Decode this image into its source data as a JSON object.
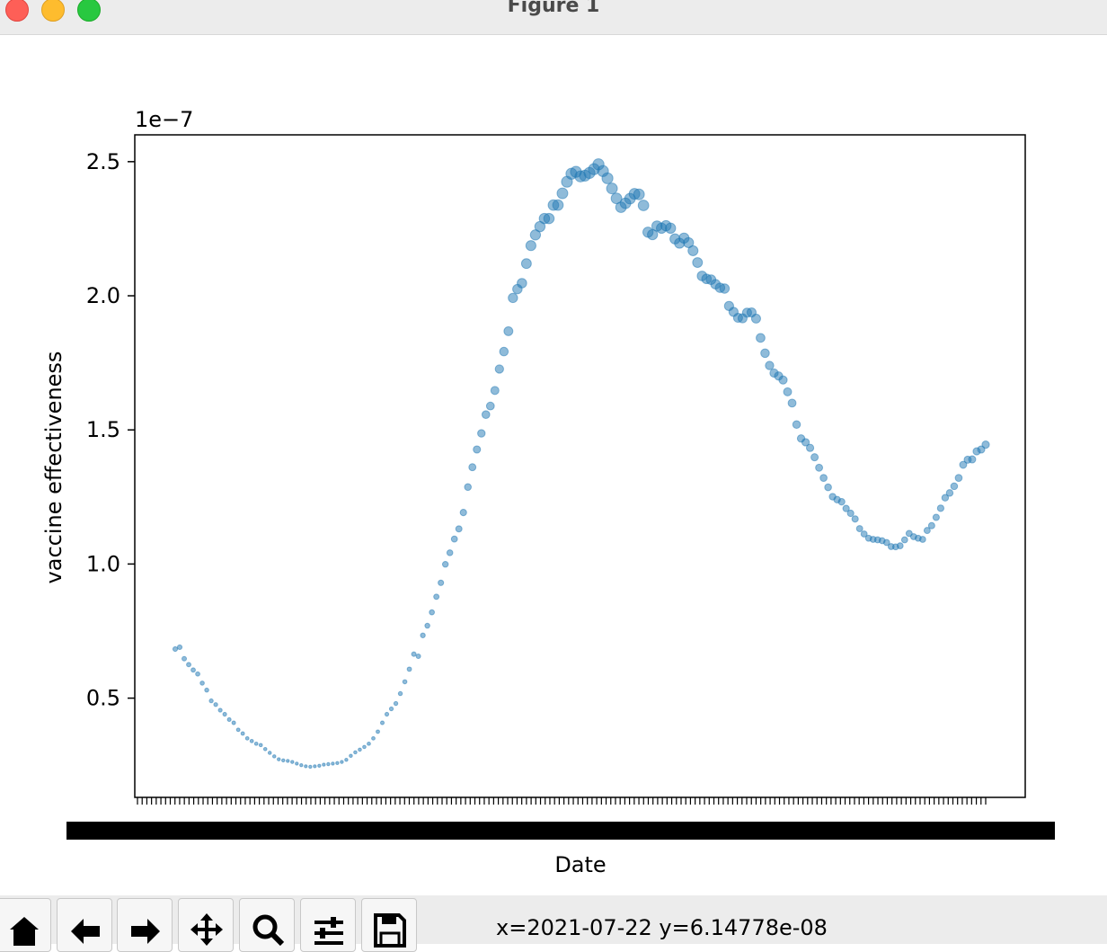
{
  "window": {
    "title": "Figure 1"
  },
  "toolbar": {
    "buttons": [
      {
        "name": "home-button",
        "icon": "home-icon"
      },
      {
        "name": "back-button",
        "icon": "arrow-left-icon"
      },
      {
        "name": "forward-button",
        "icon": "arrow-right-icon"
      },
      {
        "name": "pan-button",
        "icon": "move-icon"
      },
      {
        "name": "zoom-button",
        "icon": "magnifier-icon"
      },
      {
        "name": "configure-subplots-button",
        "icon": "sliders-icon"
      },
      {
        "name": "save-button",
        "icon": "floppy-icon"
      }
    ],
    "coords": "x=2021-07-22 y=6.14778e-08"
  },
  "chart_data": {
    "type": "scatter",
    "title": "",
    "xlabel": "Date",
    "ylabel": "vaccine effectiveness",
    "offset_text": "1e−7",
    "ylim": [
      0.13,
      2.6
    ],
    "yticks": [
      0.5,
      1.0,
      1.5,
      2.0,
      2.5
    ],
    "ytick_labels": [
      "0.5",
      "1.0",
      "1.5",
      "2.0",
      "2.5"
    ],
    "xtick_count": 182,
    "xtick_labels_note": "overlapping date tick labels rendered as a dense black band",
    "color": "#1f77b4",
    "alpha": 0.5,
    "x_index_range": [
      0,
      181
    ],
    "values": [
      0.683,
      0.69,
      0.647,
      0.625,
      0.605,
      0.59,
      0.556,
      0.53,
      0.49,
      0.476,
      0.455,
      0.44,
      0.42,
      0.408,
      0.382,
      0.368,
      0.35,
      0.34,
      0.33,
      0.325,
      0.31,
      0.296,
      0.283,
      0.272,
      0.268,
      0.266,
      0.262,
      0.256,
      0.25,
      0.246,
      0.244,
      0.246,
      0.248,
      0.252,
      0.254,
      0.256,
      0.258,
      0.262,
      0.27,
      0.285,
      0.298,
      0.308,
      0.318,
      0.33,
      0.35,
      0.375,
      0.408,
      0.44,
      0.46,
      0.48,
      0.517,
      0.561,
      0.608,
      0.664,
      0.656,
      0.734,
      0.77,
      0.82,
      0.878,
      0.93,
      0.999,
      1.042,
      1.093,
      1.131,
      1.192,
      1.287,
      1.361,
      1.427,
      1.487,
      1.557,
      1.589,
      1.647,
      1.727,
      1.792,
      1.868,
      1.992,
      2.025,
      2.047,
      2.12,
      2.187,
      2.227,
      2.258,
      2.288,
      2.288,
      2.338,
      2.338,
      2.382,
      2.425,
      2.455,
      2.462,
      2.445,
      2.448,
      2.458,
      2.472,
      2.49,
      2.465,
      2.438,
      2.4,
      2.363,
      2.33,
      2.345,
      2.362,
      2.38,
      2.378,
      2.337,
      2.237,
      2.228,
      2.26,
      2.252,
      2.261,
      2.252,
      2.212,
      2.196,
      2.215,
      2.198,
      2.168,
      2.124,
      2.074,
      2.063,
      2.06,
      2.043,
      2.03,
      2.027,
      1.962,
      1.94,
      1.918,
      1.916,
      1.937,
      1.938,
      1.915,
      1.843,
      1.786,
      1.74,
      1.712,
      1.701,
      1.686,
      1.642,
      1.6,
      1.52,
      1.468,
      1.454,
      1.433,
      1.398,
      1.359,
      1.321,
      1.286,
      1.251,
      1.24,
      1.232,
      1.207,
      1.189,
      1.168,
      1.132,
      1.112,
      1.096,
      1.092,
      1.09,
      1.087,
      1.08,
      1.065,
      1.064,
      1.068,
      1.09,
      1.114,
      1.102,
      1.096,
      1.092,
      1.125,
      1.143,
      1.174,
      1.208,
      1.247,
      1.265,
      1.29,
      1.321,
      1.37,
      1.389,
      1.39,
      1.42,
      1.427,
      1.445
    ]
  }
}
